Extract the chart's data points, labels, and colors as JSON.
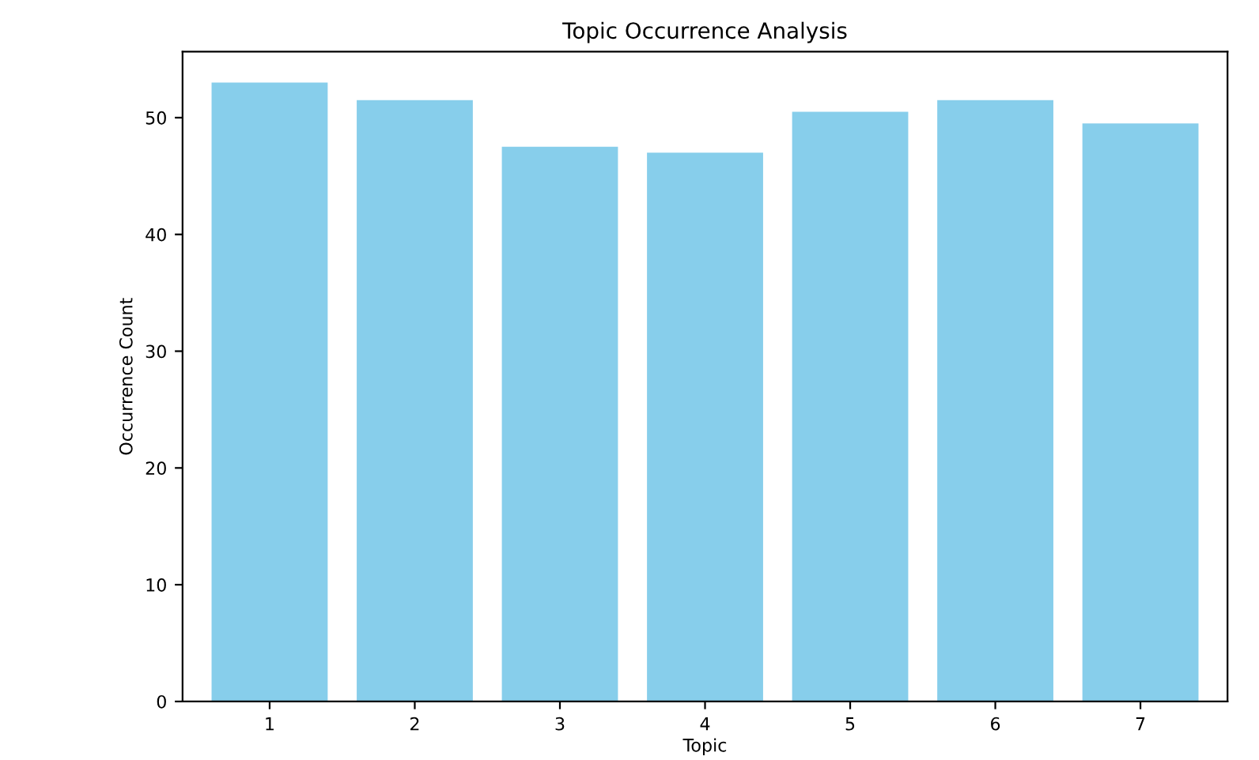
{
  "chart_data": {
    "type": "bar",
    "title": "Topic Occurrence Analysis",
    "xlabel": "Topic",
    "ylabel": "Occurrence Count",
    "categories": [
      "1",
      "2",
      "3",
      "4",
      "5",
      "6",
      "7"
    ],
    "values": [
      53,
      51.5,
      47.5,
      47,
      50.5,
      51.5,
      49.5
    ],
    "color": "#87ceeb",
    "ylim": [
      0,
      55.65
    ],
    "yticks": [
      0,
      10,
      20,
      30,
      40,
      50
    ],
    "grid": false,
    "legend": false
  }
}
